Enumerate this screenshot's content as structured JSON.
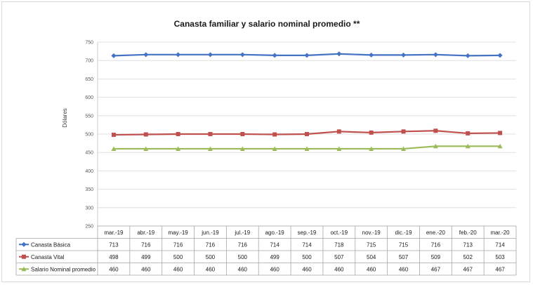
{
  "chart_data": {
    "type": "line",
    "title": "Canasta familiar y salario nominal promedio **",
    "xlabel": "",
    "ylabel": "Dólares",
    "ylim": [
      250,
      750
    ],
    "yticks": [
      250,
      300,
      350,
      400,
      450,
      500,
      550,
      600,
      650,
      700,
      750
    ],
    "grid": true,
    "legend": "data table below plot",
    "categories": [
      "mar.-19",
      "abr.-19",
      "may.-19",
      "jun.-19",
      "jul.-19",
      "ago.-19",
      "sep.-19",
      "oct.-19",
      "nov.-19",
      "dic.-19",
      "ene.-20",
      "feb.-20",
      "mar.-20"
    ],
    "series": [
      {
        "name": "Canasta Básica",
        "color": "#4472c4",
        "marker": "diamond",
        "values": [
          713,
          716,
          716,
          716,
          716,
          714,
          714,
          718,
          715,
          715,
          716,
          713,
          714
        ]
      },
      {
        "name": "Canasta Vital",
        "color": "#c0504d",
        "marker": "square",
        "values": [
          498,
          499,
          500,
          500,
          500,
          499,
          500,
          507,
          504,
          507,
          509,
          502,
          503
        ]
      },
      {
        "name": "Salario Nominal promedio",
        "color": "#9bbb59",
        "marker": "triangle",
        "values": [
          460,
          460,
          460,
          460,
          460,
          460,
          460,
          460,
          460,
          460,
          467,
          467,
          467
        ]
      }
    ]
  }
}
